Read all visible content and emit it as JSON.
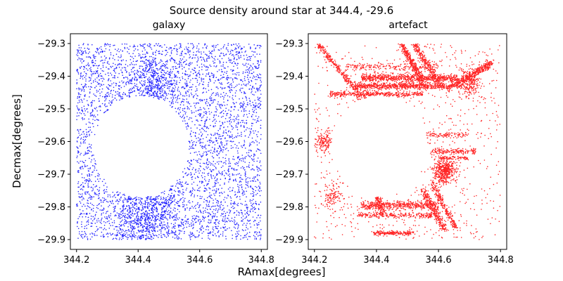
{
  "chart_data": {
    "title": "Source density around star at 344.4, -29.6",
    "xlabel": "RAmax[degrees]",
    "ylabel": "Decmax[degrees]",
    "xlim": [
      344.18,
      344.82
    ],
    "ylim": [
      -29.93,
      -29.27
    ],
    "xticks": [
      344.2,
      344.4,
      344.6,
      344.8
    ],
    "xtick_labels": [
      "344.2",
      "344.4",
      "344.6",
      "344.8"
    ],
    "yticks": [
      -29.3,
      -29.4,
      -29.5,
      -29.6,
      -29.7,
      -29.8,
      -29.9
    ],
    "ytick_labels": [
      "−29.3",
      "−29.4",
      "−29.5",
      "−29.6",
      "−29.7",
      "−29.8",
      "−29.9"
    ],
    "grid": false,
    "panels": [
      {
        "type": "scatter",
        "title": "galaxy",
        "color": "#0000ff",
        "data_extent": {
          "ra": [
            344.2,
            344.8
          ],
          "dec": [
            -29.9,
            -29.3
          ]
        },
        "mask": {
          "center_ra": 344.41,
          "center_dec": -29.615,
          "radius_ra": 0.155,
          "radius_dec": 0.155
        },
        "n_points": 5200,
        "clusters": [
          {
            "ra": 344.43,
            "dec": -29.83,
            "sd": 0.05,
            "n": 700
          },
          {
            "ra": 344.45,
            "dec": -29.43,
            "sd": 0.04,
            "n": 400
          }
        ]
      },
      {
        "type": "scatter",
        "title": "artefact",
        "color": "#ff0000",
        "data_extent": {
          "ra": [
            344.2,
            344.8
          ],
          "dec": [
            -29.9,
            -29.3
          ]
        },
        "mask": {
          "center_ra": 344.41,
          "center_dec": -29.615,
          "radius_ra": 0.155,
          "radius_dec": 0.155
        },
        "background_points": 900,
        "streaks": [
          {
            "ra0": 344.35,
            "ra1": 344.66,
            "dec": -29.405,
            "width": 0.006,
            "n": 700
          },
          {
            "ra0": 344.33,
            "ra1": 344.62,
            "dec": -29.43,
            "width": 0.005,
            "n": 700
          },
          {
            "ra0": 344.25,
            "ra1": 344.55,
            "dec": -29.455,
            "width": 0.004,
            "n": 400
          },
          {
            "ra0": 344.3,
            "ra1": 344.6,
            "dec": -29.37,
            "width": 0.006,
            "n": 200
          },
          {
            "ra0": 344.35,
            "ra1": 344.6,
            "dec": -29.795,
            "width": 0.006,
            "n": 500
          },
          {
            "ra0": 344.34,
            "ra1": 344.58,
            "dec": -29.825,
            "width": 0.004,
            "n": 250
          },
          {
            "ra0": 344.39,
            "ra1": 344.52,
            "dec": -29.88,
            "width": 0.003,
            "n": 200
          },
          {
            "ra0": 344.58,
            "ra1": 344.72,
            "dec": -29.63,
            "width": 0.004,
            "n": 160
          },
          {
            "ra0": 344.56,
            "ra1": 344.7,
            "dec": -29.58,
            "width": 0.004,
            "n": 100
          },
          {
            "ra0": 344.6,
            "ra1": 344.7,
            "dec": -29.65,
            "width": 0.003,
            "n": 80
          }
        ],
        "diagonal_streaks": [
          {
            "ra0": 344.21,
            "dec0": -29.3,
            "ra1": 344.34,
            "dec1": -29.45,
            "width": 0.008,
            "n": 300
          },
          {
            "ra0": 344.48,
            "dec0": -29.3,
            "ra1": 344.55,
            "dec1": -29.42,
            "width": 0.01,
            "n": 350
          },
          {
            "ra0": 344.52,
            "dec0": -29.3,
            "ra1": 344.6,
            "dec1": -29.42,
            "width": 0.01,
            "n": 300
          },
          {
            "ra0": 344.55,
            "dec0": -29.75,
            "ra1": 344.62,
            "dec1": -29.87,
            "width": 0.012,
            "n": 300
          },
          {
            "ra0": 344.58,
            "dec0": -29.73,
            "ra1": 344.66,
            "dec1": -29.87,
            "width": 0.01,
            "n": 250
          },
          {
            "ra0": 344.63,
            "dec0": -29.44,
            "ra1": 344.77,
            "dec1": -29.36,
            "width": 0.012,
            "n": 450
          },
          {
            "ra0": 344.4,
            "dec0": -29.76,
            "ra1": 344.42,
            "dec1": -29.82,
            "width": 0.01,
            "n": 150
          }
        ],
        "clusters": [
          {
            "ra": 344.62,
            "dec": -29.69,
            "sd": 0.018,
            "n": 500
          },
          {
            "ra": 344.7,
            "dec": -29.42,
            "sd": 0.02,
            "n": 250
          },
          {
            "ra": 344.23,
            "dec": -29.6,
            "sd": 0.015,
            "n": 150
          },
          {
            "ra": 344.26,
            "dec": -29.77,
            "sd": 0.02,
            "n": 120
          },
          {
            "ra": 344.36,
            "dec": -29.48,
            "sd": 0.015,
            "n": 120
          }
        ]
      }
    ]
  }
}
